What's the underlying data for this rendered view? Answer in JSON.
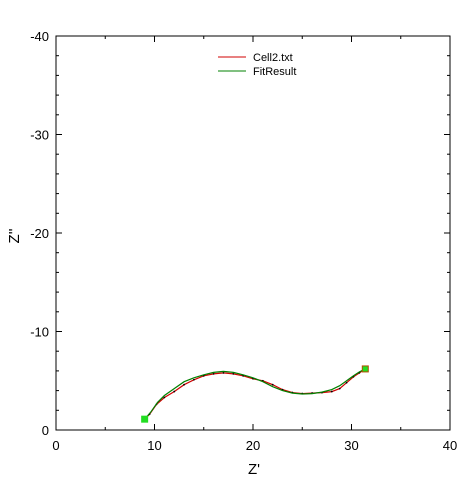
{
  "chart_data": {
    "type": "line",
    "title": "",
    "xlabel": "Z'",
    "ylabel": "Z''",
    "xlim": [
      0,
      40
    ],
    "ylim": [
      0,
      -40
    ],
    "x_ticks": [
      0,
      10,
      20,
      30,
      40
    ],
    "y_ticks": [
      0,
      -10,
      -20,
      -30,
      -40
    ],
    "x_tick_labels": [
      "0",
      "10",
      "20",
      "30",
      "40"
    ],
    "y_tick_labels": [
      "0",
      "-10",
      "-20",
      "-30",
      "-40"
    ],
    "grid": false,
    "legend_position": "top-center",
    "series": [
      {
        "name": "Cell2.txt",
        "color": "#d00000",
        "x": [
          9.0,
          9.5,
          10.2,
          11.0,
          12.0,
          13.0,
          14.0,
          15.0,
          16.0,
          17.0,
          18.0,
          19.0,
          20.0,
          21.0,
          22.0,
          23.0,
          24.0,
          25.0,
          26.0,
          27.0,
          28.0,
          28.8,
          29.5,
          30.2,
          30.8,
          31.4
        ],
        "y": [
          -1.1,
          -1.6,
          -2.6,
          -3.3,
          -3.9,
          -4.6,
          -5.1,
          -5.5,
          -5.7,
          -5.8,
          -5.7,
          -5.5,
          -5.2,
          -5.0,
          -4.6,
          -4.1,
          -3.8,
          -3.7,
          -3.75,
          -3.8,
          -3.9,
          -4.2,
          -4.8,
          -5.4,
          -5.8,
          -6.2
        ]
      },
      {
        "name": "FitResult",
        "color": "#008000",
        "x": [
          9.0,
          9.6,
          10.3,
          11.0,
          12.0,
          13.0,
          14.0,
          15.0,
          16.0,
          17.0,
          18.0,
          19.0,
          20.0,
          21.0,
          22.0,
          23.0,
          24.0,
          25.0,
          26.0,
          27.0,
          28.0,
          28.8,
          29.5,
          30.2,
          30.8,
          31.4
        ],
        "y": [
          -1.1,
          -1.8,
          -2.8,
          -3.5,
          -4.2,
          -4.9,
          -5.3,
          -5.6,
          -5.85,
          -5.95,
          -5.85,
          -5.6,
          -5.3,
          -4.9,
          -4.4,
          -4.0,
          -3.75,
          -3.65,
          -3.7,
          -3.85,
          -4.1,
          -4.5,
          -5.0,
          -5.5,
          -5.9,
          -6.2
        ]
      }
    ],
    "markers": [
      {
        "x": 9.0,
        "y": -1.1,
        "color": "#22dd22",
        "stroke": "#22dd22"
      },
      {
        "x": 31.4,
        "y": -6.2,
        "color": "#22dd22",
        "stroke": "#b05000"
      }
    ]
  }
}
